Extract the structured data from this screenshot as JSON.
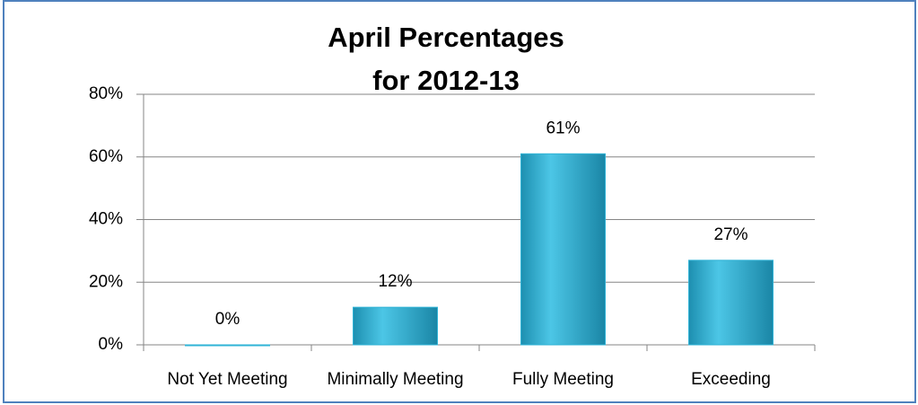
{
  "chart_data": {
    "type": "bar",
    "title": [
      "April Percentages",
      "for 2012-13"
    ],
    "categories": [
      "Not Yet Meeting",
      "Minimally Meeting",
      "Fully Meeting",
      "Exceeding"
    ],
    "values": [
      0,
      12,
      61,
      27
    ],
    "value_labels": [
      "0%",
      "12%",
      "61%",
      "27%"
    ],
    "color": "#2fb3d6",
    "ylim": [
      0,
      80
    ],
    "yticks": [
      {
        "value": 0,
        "label": "0%"
      },
      {
        "value": 20,
        "label": "20%"
      },
      {
        "value": 40,
        "label": "40%"
      },
      {
        "value": 60,
        "label": "60%"
      },
      {
        "value": 80,
        "label": "80%"
      }
    ],
    "grid": true
  }
}
